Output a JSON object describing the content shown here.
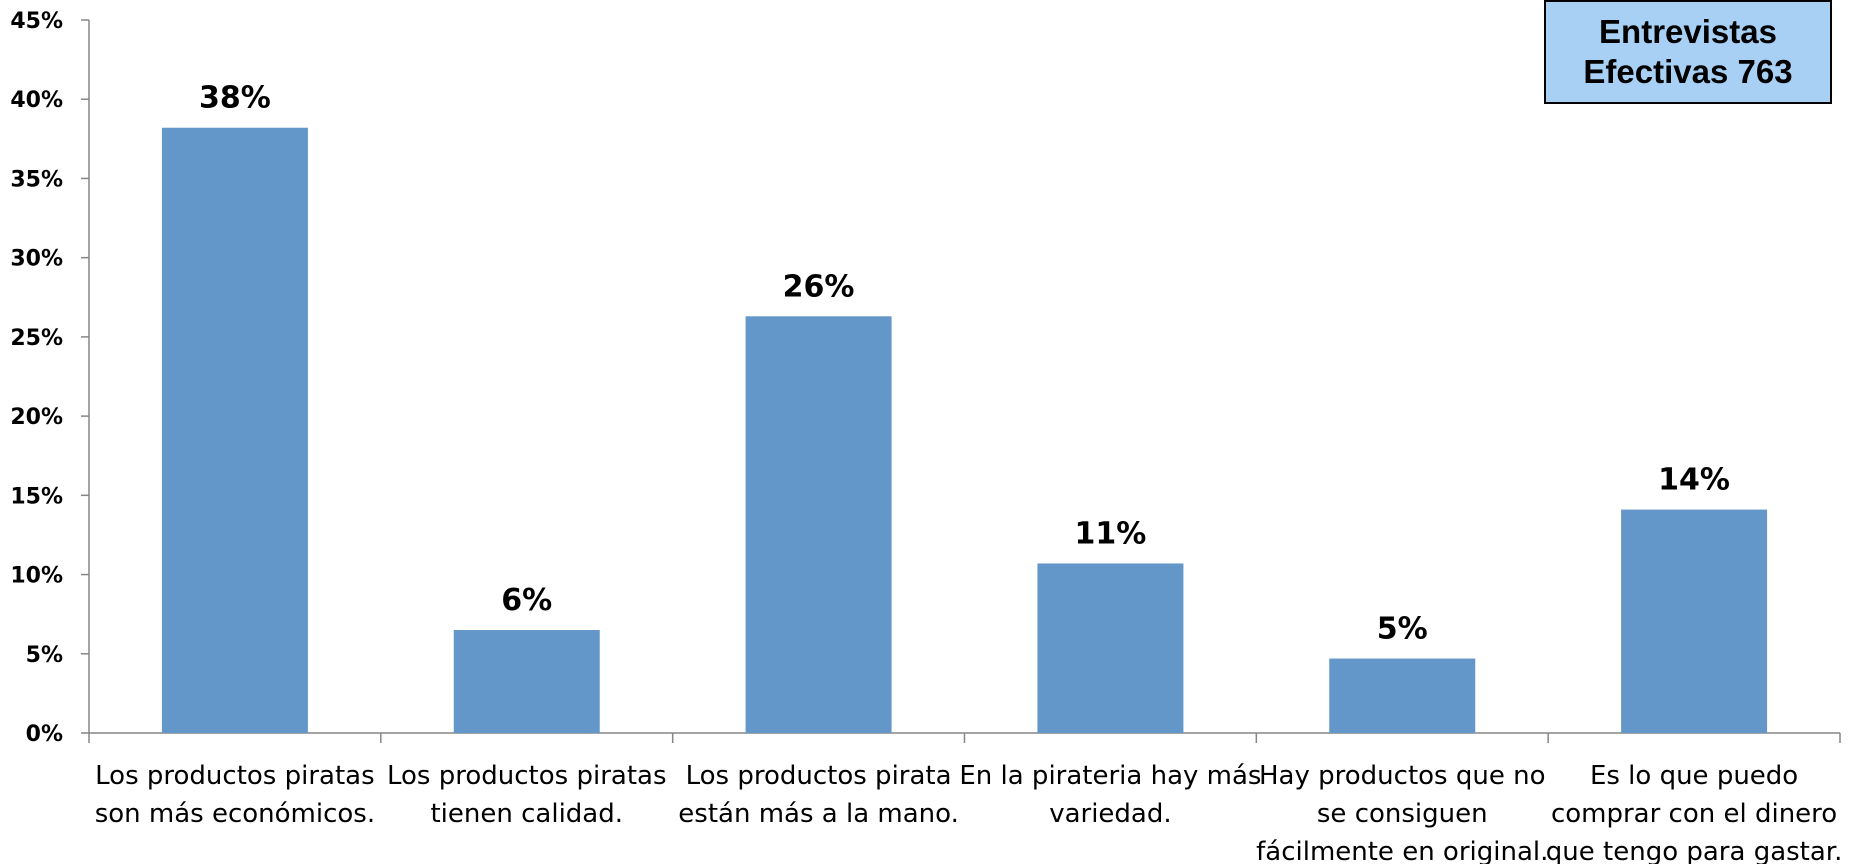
{
  "chart_data": {
    "type": "bar",
    "categories": [
      [
        "Los productos piratas",
        "son más económicos."
      ],
      [
        "Los productos piratas",
        "tienen calidad."
      ],
      [
        "Los productos pirata",
        "están más a la mano."
      ],
      [
        "En la pirateria hay más",
        "variedad."
      ],
      [
        "Hay productos que no",
        "se consiguen",
        "fácilmente en original."
      ],
      [
        "Es lo que puedo",
        "comprar con el dinero",
        "que tengo para gastar."
      ]
    ],
    "values": [
      38.2,
      6.5,
      26.3,
      10.7,
      4.7,
      14.1
    ],
    "data_labels": [
      "38%",
      "6%",
      "26%",
      "11%",
      "5%",
      "14%"
    ],
    "ylim": [
      0,
      45
    ],
    "yticks": [
      0,
      5,
      10,
      15,
      20,
      25,
      30,
      35,
      40,
      45
    ],
    "ytick_labels": [
      "0%",
      "5%",
      "10%",
      "15%",
      "20%",
      "25%",
      "30%",
      "35%",
      "40%",
      "45%"
    ],
    "bar_color": "#6397c9",
    "grid": false,
    "legend": false
  },
  "stamp": {
    "line1": "Entrevistas",
    "line2": "Efectivas 763",
    "color": "#a8d0f5"
  }
}
